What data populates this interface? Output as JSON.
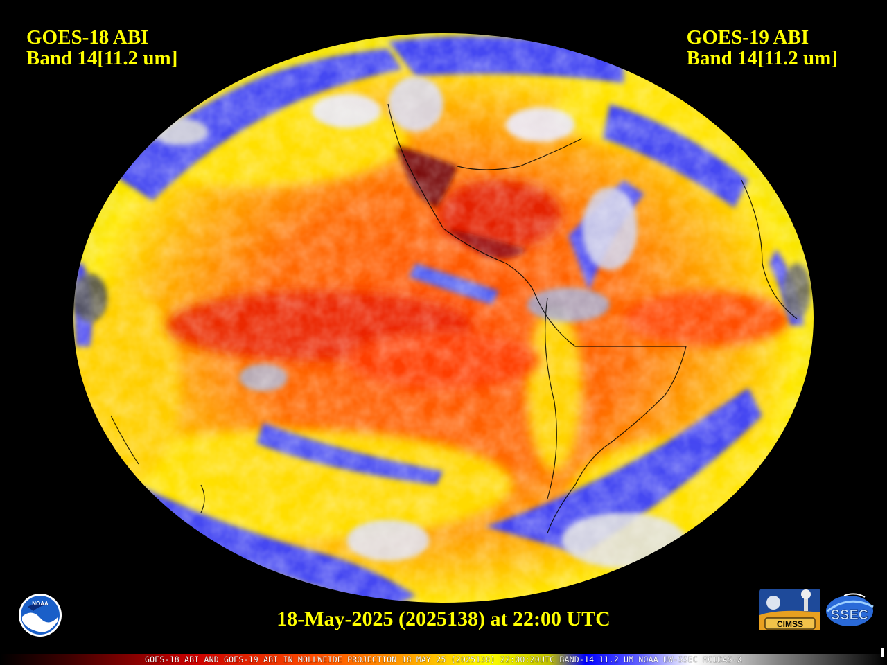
{
  "labels": {
    "left_satellite": "GOES-18 ABI",
    "left_band": "Band 14[11.2 um]",
    "right_satellite": "GOES-19 ABI",
    "right_band": "Band 14[11.2 um]"
  },
  "timestamp": "18-May-2025 (2025138) at 22:00 UTC",
  "footer": "GOES-18 ABI AND GOES-19 ABI IN MOLLWEIDE PROJECTION 18 MAY 25 (2025138) 22:00:20UTC BAND-14 11.2 UM NOAA UW-SSEC MCIDAS-X",
  "logos": {
    "noaa": "NOAA",
    "cimss": "CIMSS",
    "ssec": "SSEC"
  },
  "colors": {
    "label_text": "#ffff00",
    "background": "#000000",
    "warm": "#ff5a00",
    "hot": "#cc1a00",
    "mid": "#ffe000",
    "cold": "#3a3aff",
    "coldest": "#ffffff"
  }
}
